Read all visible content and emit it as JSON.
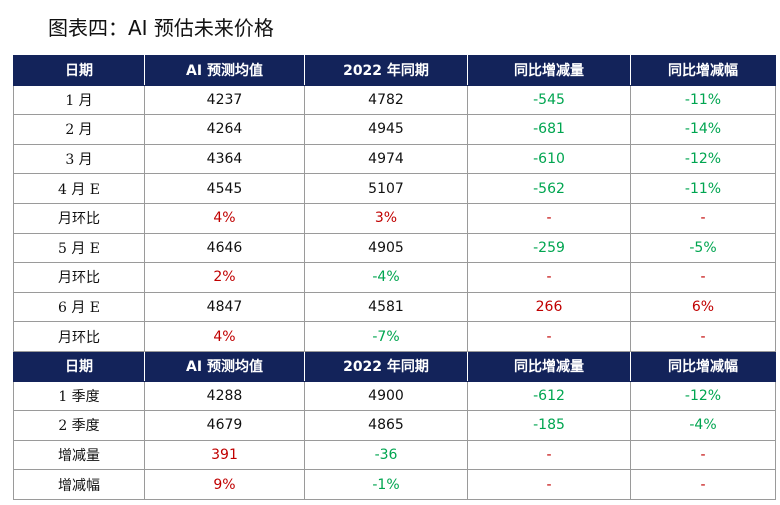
{
  "title": "图表四：AI 预估未来价格",
  "colors": {
    "header_bg": "#13235a",
    "positive": "#c00000",
    "negative": "#00a550"
  },
  "header": [
    "日期",
    "AI 预测均值",
    "2022 年同期",
    "同比增减量",
    "同比增减幅"
  ],
  "monthly_rows": [
    {
      "label": "1 月",
      "ai": "4237",
      "ly": "4782",
      "chg": "-545",
      "pct": "-11%",
      "ai_c": "blk",
      "ly_c": "blk",
      "chg_c": "down",
      "pct_c": "down"
    },
    {
      "label": "2 月",
      "ai": "4264",
      "ly": "4945",
      "chg": "-681",
      "pct": "-14%",
      "ai_c": "blk",
      "ly_c": "blk",
      "chg_c": "down",
      "pct_c": "down"
    },
    {
      "label": "3 月",
      "ai": "4364",
      "ly": "4974",
      "chg": "-610",
      "pct": "-12%",
      "ai_c": "blk",
      "ly_c": "blk",
      "chg_c": "down",
      "pct_c": "down"
    },
    {
      "label": "4 月 E",
      "ai": "4545",
      "ly": "5107",
      "chg": "-562",
      "pct": "-11%",
      "ai_c": "blk",
      "ly_c": "blk",
      "chg_c": "down",
      "pct_c": "down"
    },
    {
      "label": "月环比",
      "ai": "4%",
      "ly": "3%",
      "chg": "-",
      "pct": "-",
      "ai_c": "up",
      "ly_c": "up",
      "chg_c": "up",
      "pct_c": "up"
    },
    {
      "label": "5 月 E",
      "ai": "4646",
      "ly": "4905",
      "chg": "-259",
      "pct": "-5%",
      "ai_c": "blk",
      "ly_c": "blk",
      "chg_c": "down",
      "pct_c": "down"
    },
    {
      "label": "月环比",
      "ai": "2%",
      "ly": "-4%",
      "chg": "-",
      "pct": "-",
      "ai_c": "up",
      "ly_c": "down",
      "chg_c": "up",
      "pct_c": "up"
    },
    {
      "label": "6 月 E",
      "ai": "4847",
      "ly": "4581",
      "chg": "266",
      "pct": "6%",
      "ai_c": "blk",
      "ly_c": "blk",
      "chg_c": "up",
      "pct_c": "up"
    },
    {
      "label": "月环比",
      "ai": "4%",
      "ly": "-7%",
      "chg": "-",
      "pct": "-",
      "ai_c": "up",
      "ly_c": "down",
      "chg_c": "up",
      "pct_c": "up"
    }
  ],
  "quarterly_rows": [
    {
      "label": "1 季度",
      "ai": "4288",
      "ly": "4900",
      "chg": "-612",
      "pct": "-12%",
      "ai_c": "blk",
      "ly_c": "blk",
      "chg_c": "down",
      "pct_c": "down"
    },
    {
      "label": "2 季度",
      "ai": "4679",
      "ly": "4865",
      "chg": "-185",
      "pct": "-4%",
      "ai_c": "blk",
      "ly_c": "blk",
      "chg_c": "down",
      "pct_c": "down"
    },
    {
      "label": "增减量",
      "ai": "391",
      "ly": "-36",
      "chg": "-",
      "pct": "-",
      "ai_c": "up",
      "ly_c": "down",
      "chg_c": "up",
      "pct_c": "up"
    },
    {
      "label": "增减幅",
      "ai": "9%",
      "ly": "-1%",
      "chg": "-",
      "pct": "-",
      "ai_c": "up",
      "ly_c": "down",
      "chg_c": "up",
      "pct_c": "up"
    }
  ]
}
